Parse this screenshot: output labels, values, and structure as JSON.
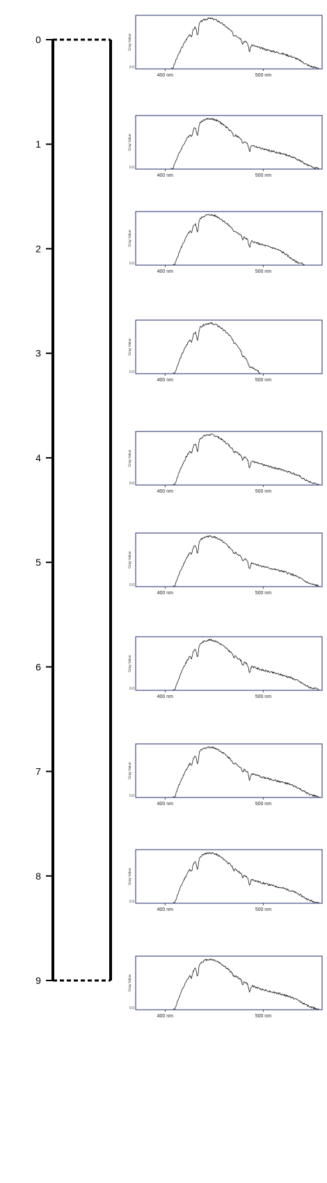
{
  "chart_data": {
    "type": "line",
    "depth_scale": {
      "ticks": [
        "0",
        "1",
        "2",
        "3",
        "4",
        "5",
        "6",
        "7",
        "8",
        "9"
      ],
      "range": [
        0,
        9
      ]
    },
    "spectra": [
      {
        "depth": "0",
        "ylabel": "Gray Value",
        "zero": "0.0",
        "xticks": [
          "400 nm",
          "500 nm"
        ],
        "xlim": [
          370,
          560
        ],
        "extent": [
          408,
          555
        ],
        "variant": 0
      },
      {
        "depth": "1",
        "ylabel": "Gray Value",
        "zero": "0.0",
        "xticks": [
          "400 nm",
          "500 nm"
        ],
        "xlim": [
          370,
          560
        ],
        "extent": [
          408,
          555
        ],
        "variant": 1
      },
      {
        "depth": "2",
        "ylabel": "Gray Value",
        "zero": "0.0",
        "xticks": [
          "400 nm",
          "500 nm"
        ],
        "xlim": [
          370,
          560
        ],
        "extent": [
          410,
          540
        ],
        "variant": 2
      },
      {
        "depth": "3",
        "ylabel": "Gray Value",
        "zero": "0.0",
        "xticks": [
          "400 nm",
          "500 nm"
        ],
        "xlim": [
          370,
          560
        ],
        "extent": [
          410,
          495
        ],
        "variant": 3
      },
      {
        "depth": "4",
        "ylabel": "Gray Value",
        "zero": "0.0",
        "xticks": [
          "400 nm",
          "500 nm"
        ],
        "xlim": [
          370,
          560
        ],
        "extent": [
          410,
          555
        ],
        "variant": 4
      },
      {
        "depth": "5",
        "ylabel": "Gray Value",
        "zero": "0.0",
        "xticks": [
          "400 nm",
          "500 nm"
        ],
        "xlim": [
          370,
          560
        ],
        "extent": [
          410,
          555
        ],
        "variant": 5
      },
      {
        "depth": "6",
        "ylabel": "Gray Value",
        "zero": "0.0",
        "xticks": [
          "400 nm",
          "500 nm"
        ],
        "xlim": [
          370,
          560
        ],
        "extent": [
          410,
          555
        ],
        "variant": 6
      },
      {
        "depth": "7",
        "ylabel": "Gray Value",
        "zero": "0.0",
        "xticks": [
          "400 nm",
          "500 nm"
        ],
        "xlim": [
          370,
          560
        ],
        "extent": [
          410,
          555
        ],
        "variant": 7
      },
      {
        "depth": "8",
        "ylabel": "Gray Value",
        "zero": "0.0",
        "xticks": [
          "400 nm",
          "500 nm"
        ],
        "xlim": [
          370,
          560
        ],
        "extent": [
          410,
          555
        ],
        "variant": 8
      },
      {
        "depth": "9",
        "ylabel": "Gray Value",
        "zero": "0.0",
        "xticks": [
          "400 nm",
          "500 nm"
        ],
        "xlim": [
          370,
          560
        ],
        "extent": [
          410,
          555
        ],
        "variant": 9
      }
    ]
  }
}
